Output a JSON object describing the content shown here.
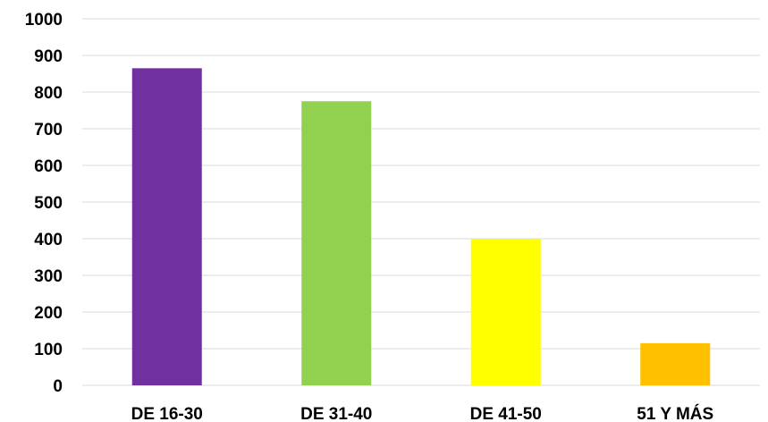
{
  "chart_data": {
    "type": "bar",
    "title": "",
    "xlabel": "",
    "ylabel": "",
    "categories": [
      "DE 16-30",
      "DE 31-40",
      "DE 41-50",
      "51 Y MÁS"
    ],
    "values": [
      865,
      775,
      400,
      115
    ],
    "colors": [
      "#7030a0",
      "#92d050",
      "#ffff00",
      "#ffc000"
    ],
    "ylim": [
      0,
      1000
    ],
    "yticks": [
      0,
      100,
      200,
      300,
      400,
      500,
      600,
      700,
      800,
      900,
      1000
    ],
    "grid": true,
    "legend": "none"
  }
}
